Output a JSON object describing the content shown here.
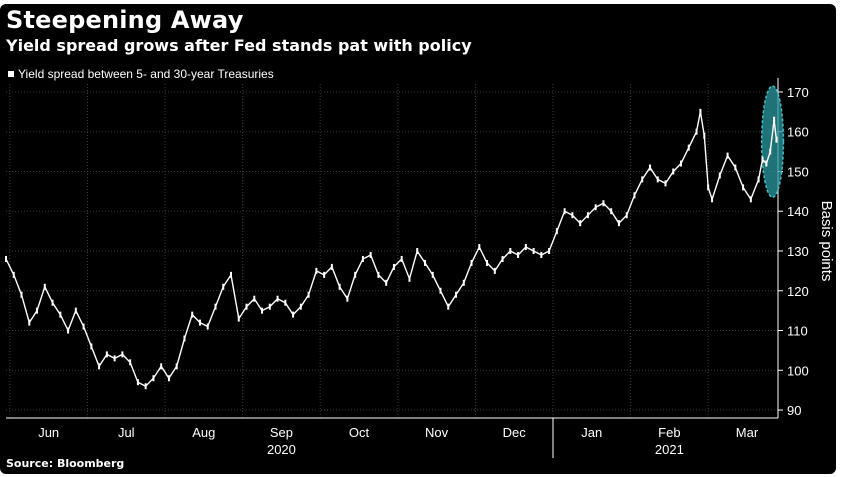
{
  "title": "Steepening Away",
  "subtitle": "Yield spread grows after Fed stands pat with policy",
  "source": "Source: Bloomberg",
  "colors": {
    "background": "#000000",
    "series": "#ffffff",
    "grid": "#3a3a3a",
    "highlight": "#2a9aa0"
  },
  "chart_data": {
    "type": "line",
    "title": "Steepening Away",
    "subtitle": "Yield spread grows after Fed stands pat with policy",
    "legend": [
      "Yield spread between 5- and 30-year Treasuries"
    ],
    "legend_position": "top-left",
    "ylabel": "Basis points",
    "xlabel": "",
    "ylim": [
      88,
      172
    ],
    "yticks": [
      90,
      100,
      110,
      120,
      130,
      140,
      150,
      160,
      170
    ],
    "y_axis_side": "right",
    "grid": true,
    "x_ticks": [
      {
        "label": "Jun",
        "t": 0.55
      },
      {
        "label": "Jul",
        "t": 1.55
      },
      {
        "label": "Aug",
        "t": 2.55
      },
      {
        "label": "Sep",
        "t": 3.55
      },
      {
        "label": "Oct",
        "t": 4.55
      },
      {
        "label": "Nov",
        "t": 5.55
      },
      {
        "label": "Dec",
        "t": 6.55
      },
      {
        "label": "Jan",
        "t": 7.55
      },
      {
        "label": "Feb",
        "t": 8.55
      },
      {
        "label": "Mar",
        "t": 9.55
      }
    ],
    "x_year_labels": [
      {
        "label": "2020",
        "t": 3.55
      },
      {
        "label": "2021",
        "t": 8.55
      }
    ],
    "year_divider_t": 7.05,
    "xlim": [
      0.0,
      9.95
    ],
    "series": [
      {
        "name": "Yield spread between 5- and 30-year Treasuries",
        "points": [
          [
            0.0,
            128
          ],
          [
            0.1,
            124
          ],
          [
            0.2,
            119
          ],
          [
            0.3,
            112
          ],
          [
            0.4,
            115
          ],
          [
            0.5,
            121
          ],
          [
            0.6,
            117
          ],
          [
            0.7,
            114
          ],
          [
            0.8,
            110
          ],
          [
            0.9,
            115
          ],
          [
            1.0,
            111
          ],
          [
            1.1,
            106
          ],
          [
            1.2,
            101
          ],
          [
            1.3,
            104
          ],
          [
            1.4,
            103
          ],
          [
            1.5,
            104
          ],
          [
            1.6,
            102
          ],
          [
            1.7,
            97
          ],
          [
            1.8,
            96
          ],
          [
            1.9,
            98
          ],
          [
            2.0,
            101
          ],
          [
            2.1,
            98
          ],
          [
            2.2,
            101
          ],
          [
            2.3,
            108
          ],
          [
            2.4,
            114
          ],
          [
            2.5,
            112
          ],
          [
            2.6,
            111
          ],
          [
            2.7,
            116
          ],
          [
            2.8,
            121
          ],
          [
            2.9,
            124
          ],
          [
            3.0,
            113
          ],
          [
            3.1,
            116
          ],
          [
            3.2,
            118
          ],
          [
            3.3,
            115
          ],
          [
            3.4,
            116
          ],
          [
            3.5,
            118
          ],
          [
            3.6,
            117
          ],
          [
            3.7,
            114
          ],
          [
            3.8,
            116
          ],
          [
            3.9,
            119
          ],
          [
            4.0,
            125
          ],
          [
            4.1,
            124
          ],
          [
            4.2,
            126
          ],
          [
            4.3,
            121
          ],
          [
            4.4,
            118
          ],
          [
            4.5,
            124
          ],
          [
            4.6,
            128
          ],
          [
            4.7,
            129
          ],
          [
            4.8,
            124
          ],
          [
            4.9,
            122
          ],
          [
            5.0,
            126
          ],
          [
            5.1,
            128
          ],
          [
            5.2,
            123
          ],
          [
            5.3,
            130
          ],
          [
            5.4,
            127
          ],
          [
            5.5,
            124
          ],
          [
            5.6,
            120
          ],
          [
            5.7,
            116
          ],
          [
            5.8,
            119
          ],
          [
            5.9,
            122
          ],
          [
            6.0,
            127
          ],
          [
            6.1,
            131
          ],
          [
            6.2,
            127
          ],
          [
            6.3,
            125
          ],
          [
            6.4,
            128
          ],
          [
            6.5,
            130
          ],
          [
            6.6,
            129
          ],
          [
            6.7,
            131
          ],
          [
            6.8,
            130
          ],
          [
            6.9,
            129
          ],
          [
            7.0,
            130
          ],
          [
            7.1,
            135
          ],
          [
            7.2,
            140
          ],
          [
            7.3,
            139
          ],
          [
            7.4,
            137
          ],
          [
            7.5,
            139
          ],
          [
            7.6,
            141
          ],
          [
            7.7,
            142
          ],
          [
            7.8,
            140
          ],
          [
            7.9,
            137
          ],
          [
            8.0,
            139
          ],
          [
            8.1,
            144
          ],
          [
            8.2,
            148
          ],
          [
            8.3,
            151
          ],
          [
            8.4,
            148
          ],
          [
            8.5,
            147
          ],
          [
            8.6,
            150
          ],
          [
            8.7,
            152
          ],
          [
            8.8,
            156
          ],
          [
            8.9,
            160
          ],
          [
            8.95,
            165
          ],
          [
            9.0,
            159
          ],
          [
            9.05,
            146
          ],
          [
            9.1,
            143
          ],
          [
            9.2,
            149
          ],
          [
            9.3,
            154
          ],
          [
            9.4,
            151
          ],
          [
            9.5,
            146
          ],
          [
            9.6,
            143
          ],
          [
            9.7,
            148
          ],
          [
            9.75,
            153
          ],
          [
            9.8,
            152
          ],
          [
            9.85,
            155
          ],
          [
            9.9,
            163
          ],
          [
            9.93,
            158
          ]
        ]
      }
    ],
    "highlight": {
      "type": "ellipse",
      "t_center": 9.88,
      "y_center": 157.5,
      "t_radius": 0.14,
      "y_radius": 14
    }
  }
}
